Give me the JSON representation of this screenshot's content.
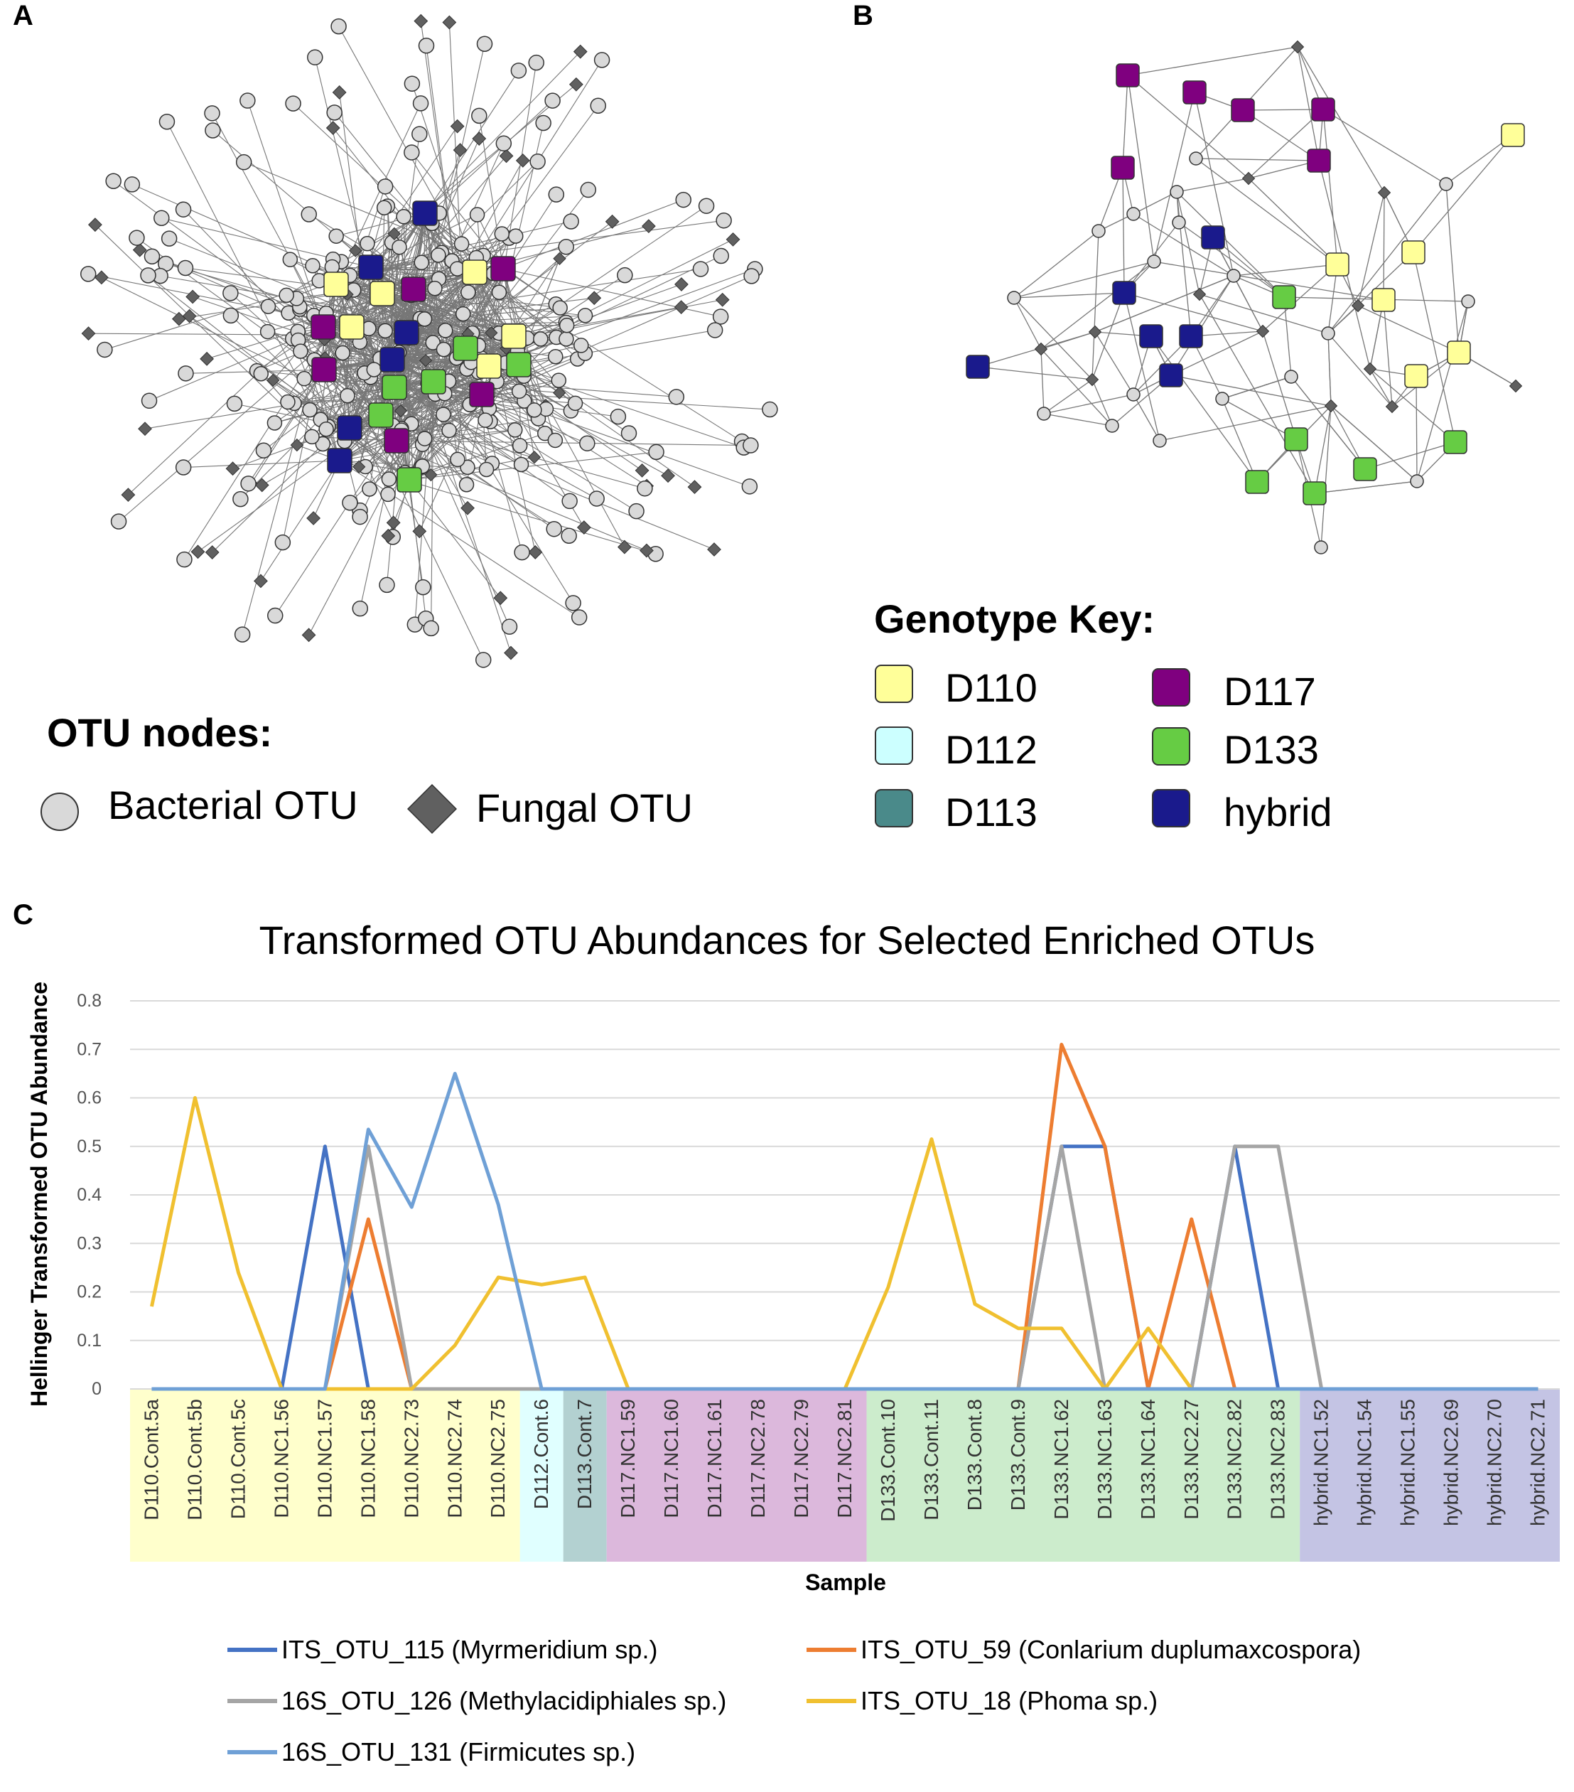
{
  "panels": {
    "a": "A",
    "b": "B",
    "c": "C"
  },
  "otu_legend": {
    "title": "OTU nodes:",
    "bacterial": "Bacterial OTU",
    "fungal": "Fungal OTU"
  },
  "genotype_key": {
    "title": "Genotype Key:",
    "items": [
      {
        "label": "D110",
        "color": "#ffff99"
      },
      {
        "label": "D112",
        "color": "#ccffff"
      },
      {
        "label": "D113",
        "color": "#4a8a8a"
      },
      {
        "label": "D117",
        "color": "#7f007f"
      },
      {
        "label": "D133",
        "color": "#66cc44"
      },
      {
        "label": "hybrid",
        "color": "#1a1a8c"
      }
    ]
  },
  "chart_data": {
    "type": "line",
    "title": "Transformed OTU Abundances for Selected Enriched OTUs",
    "xlabel": "Sample",
    "ylabel": "Hellinger Transformed OTU Abundance",
    "ylim": [
      0,
      0.8
    ],
    "yticks": [
      "0",
      "0.1",
      "0.2",
      "0.3",
      "0.4",
      "0.5",
      "0.6",
      "0.7",
      "0.8"
    ],
    "categories": [
      "D110.Cont.5a",
      "D110.Cont.5b",
      "D110.Cont.5c",
      "D110.NC1.56",
      "D110.NC1.57",
      "D110.NC1.58",
      "D110.NC2.73",
      "D110.NC2.74",
      "D110.NC2.75",
      "D112.Cont.6",
      "D113.Cont.7",
      "D117.NC1.59",
      "D117.NC1.60",
      "D117.NC1.61",
      "D117.NC2.78",
      "D117.NC2.79",
      "D117.NC2.81",
      "D133.Cont.10",
      "D133.Cont.11",
      "D133.Cont.8",
      "D133.Cont.9",
      "D133.NC1.62",
      "D133.NC1.63",
      "D133.NC1.64",
      "D133.NC2.27",
      "D133.NC2.82",
      "D133.NC2.83",
      "hybrid.NC1.52",
      "hybrid.NC1.54",
      "hybrid.NC1.55",
      "hybrid.NC2.69",
      "hybrid.NC2.70",
      "hybrid.NC2.71"
    ],
    "groups": [
      {
        "name": "D110",
        "start": 0,
        "end": 8,
        "color": "#ffffcc"
      },
      {
        "name": "D112",
        "start": 9,
        "end": 9,
        "color": "#e0ffff"
      },
      {
        "name": "D113",
        "start": 10,
        "end": 10,
        "color": "#b3d1d1"
      },
      {
        "name": "D117",
        "start": 11,
        "end": 16,
        "color": "#dcb8dc"
      },
      {
        "name": "D133",
        "start": 17,
        "end": 26,
        "color": "#cceccc"
      },
      {
        "name": "hybrid",
        "start": 27,
        "end": 32,
        "color": "#c4c4e4"
      }
    ],
    "series": [
      {
        "name": "ITS_OTU_115 (Myrmeridium sp.)",
        "color": "#4472c4",
        "values": [
          0,
          0,
          0,
          0,
          0.5,
          0,
          0,
          0,
          0,
          0,
          0,
          0,
          0,
          0,
          0,
          0,
          0,
          0,
          0,
          0,
          0,
          0.5,
          0.5,
          0,
          0,
          0.5,
          0,
          0,
          0,
          0,
          0,
          0,
          0
        ]
      },
      {
        "name": "ITS_OTU_59 (Conlarium duplumaxcospora)",
        "color": "#ed7d31",
        "values": [
          0,
          0,
          0,
          0,
          0,
          0.35,
          0,
          0,
          0,
          0,
          0,
          0,
          0,
          0,
          0,
          0,
          0,
          0,
          0,
          0,
          0,
          0.71,
          0.5,
          0,
          0.35,
          0,
          0,
          0,
          0,
          0,
          0,
          0,
          0
        ]
      },
      {
        "name": "16S_OTU_126 (Methylacidiphiales sp.)",
        "color": "#a5a5a5",
        "values": [
          0,
          0,
          0,
          0,
          0,
          0.5,
          0,
          0,
          0,
          0,
          0,
          0,
          0,
          0,
          0,
          0,
          0,
          0,
          0,
          0,
          0,
          0.5,
          0,
          0,
          0,
          0.5,
          0.5,
          0,
          0,
          0,
          0,
          0,
          0
        ]
      },
      {
        "name": "ITS_OTU_18 (Phoma sp.)",
        "color": "#f0c030",
        "values": [
          0.17,
          0.6,
          0.24,
          0,
          0,
          0,
          0,
          0.09,
          0.23,
          0.215,
          0.23,
          0,
          0,
          0,
          0,
          0,
          0,
          0.21,
          0.515,
          0.175,
          0.125,
          0.125,
          0,
          0.125,
          0,
          0,
          0,
          0,
          0,
          0,
          0,
          0,
          0
        ]
      },
      {
        "name": "16S_OTU_131 (Firmicutes sp.)",
        "color": "#6fa0d6",
        "values": [
          0,
          0,
          0,
          0,
          0,
          0.535,
          0.375,
          0.65,
          0.38,
          0,
          0,
          0,
          0,
          0,
          0,
          0,
          0,
          0,
          0,
          0,
          0,
          0,
          0,
          0,
          0,
          0,
          0,
          0,
          0,
          0,
          0,
          0,
          0
        ]
      }
    ]
  }
}
